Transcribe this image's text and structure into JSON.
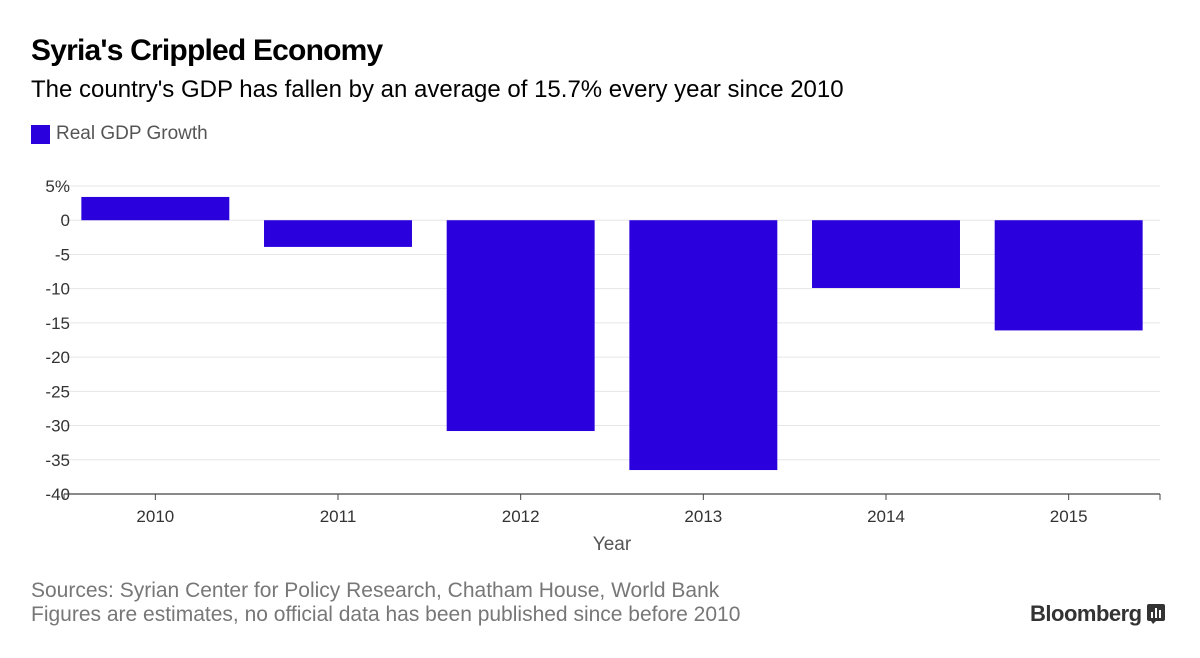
{
  "header": {
    "title": "Syria's Crippled Economy",
    "subtitle": "The country's GDP has fallen by an average of 15.7% every year since 2010"
  },
  "footer": {
    "sources": "Sources: Syrian Center for Policy Research, Chatham House, World Bank",
    "note": "Figures are estimates, no official data has been published since before 2010",
    "brand": "Bloomberg",
    "brand_icon": "bloomberg-terminal-icon"
  },
  "colors": {
    "bar": "#2a00dd",
    "grid": "#e6e6e6",
    "axis": "#444444",
    "tick_text": "#333333"
  },
  "chart_data": {
    "type": "bar",
    "title": "Syria's Crippled Economy",
    "subtitle": "The country's GDP has fallen by an average of 15.7% every year since 2010",
    "xlabel": "Year",
    "ylabel": "",
    "categories": [
      "2010",
      "2011",
      "2012",
      "2013",
      "2014",
      "2015"
    ],
    "series": [
      {
        "name": "Real GDP Growth",
        "values": [
          3.4,
          -3.9,
          -30.8,
          -36.5,
          -9.9,
          -16.1
        ]
      }
    ],
    "ylim": [
      -40,
      5
    ],
    "yticks": [
      5,
      0,
      -5,
      -10,
      -15,
      -20,
      -25,
      -30,
      -35,
      -40
    ],
    "ytick_labels": [
      "5%",
      "0",
      "-5",
      "-10",
      "-15",
      "-20",
      "-25",
      "-30",
      "-35",
      "-40"
    ],
    "grid": true,
    "legend_position": "top-left"
  }
}
